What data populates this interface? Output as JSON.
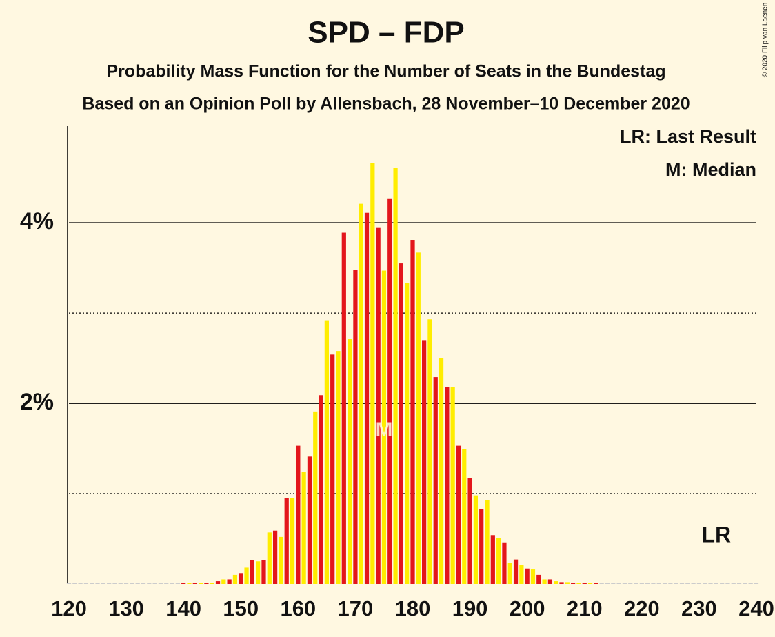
{
  "chart_data": {
    "type": "bar",
    "title": "SPD – FDP",
    "subtitle": "Probability Mass Function for the Number of Seats in the Bundestag",
    "subtitle2": "Based on an Opinion Poll by Allensbach, 28 November–10 December 2020",
    "copyright": "© 2020 Filip van Laenen",
    "legend": [
      "LR: Last Result",
      "M: Median"
    ],
    "colors": [
      "#e3161b",
      "#ffed00"
    ],
    "x": [
      120,
      121,
      122,
      123,
      124,
      125,
      126,
      127,
      128,
      129,
      130,
      131,
      132,
      133,
      134,
      135,
      136,
      137,
      138,
      139,
      140,
      141,
      142,
      143,
      144,
      145,
      146,
      147,
      148,
      149,
      150,
      151,
      152,
      153,
      154,
      155,
      156,
      157,
      158,
      159,
      160,
      161,
      162,
      163,
      164,
      165,
      166,
      167,
      168,
      169,
      170,
      171,
      172,
      173,
      174,
      175,
      176,
      177,
      178,
      179,
      180,
      181,
      182,
      183,
      184,
      185,
      186,
      187,
      188,
      189,
      190,
      191,
      192,
      193,
      194,
      195,
      196,
      197,
      198,
      199,
      200,
      201,
      202,
      203,
      204,
      205,
      206,
      207,
      208,
      209,
      210,
      211,
      212,
      213,
      214,
      215,
      216,
      217,
      218,
      219,
      220,
      221,
      222,
      223,
      224,
      225,
      226,
      227,
      228,
      229,
      230,
      231,
      232,
      233,
      234,
      235,
      236,
      237,
      238,
      239,
      240
    ],
    "values": [
      0,
      0,
      0,
      0,
      0,
      0,
      0,
      0,
      0,
      0,
      0,
      0,
      0,
      0,
      0,
      0,
      0,
      0,
      0,
      0,
      0.01,
      0.01,
      0.01,
      0.01,
      0.01,
      0.01,
      0.03,
      0.05,
      0.05,
      0.1,
      0.12,
      0.18,
      0.26,
      0.25,
      0.26,
      0.57,
      0.59,
      0.52,
      0.95,
      0.95,
      1.53,
      1.24,
      1.41,
      1.91,
      2.09,
      2.92,
      2.54,
      2.58,
      3.89,
      2.71,
      3.48,
      4.21,
      4.11,
      4.66,
      3.95,
      3.47,
      4.27,
      4.61,
      3.55,
      3.33,
      3.81,
      3.67,
      2.7,
      2.93,
      2.29,
      2.5,
      2.18,
      2.18,
      1.53,
      1.49,
      1.17,
      0.98,
      0.83,
      0.93,
      0.54,
      0.51,
      0.46,
      0.23,
      0.27,
      0.21,
      0.17,
      0.16,
      0.1,
      0.05,
      0.05,
      0.03,
      0.02,
      0.02,
      0.01,
      0.01,
      0.01,
      0.01,
      0.01,
      0,
      0,
      0,
      0,
      0,
      0,
      0,
      0,
      0,
      0,
      0,
      0,
      0,
      0,
      0,
      0,
      0,
      0,
      0,
      0,
      0,
      0,
      0,
      0,
      0,
      0,
      0,
      0
    ],
    "xlim": [
      120,
      240
    ],
    "xticks": [
      120,
      130,
      140,
      150,
      160,
      170,
      180,
      190,
      200,
      210,
      220,
      230,
      240
    ],
    "ylim": [
      0,
      5.07
    ],
    "yticks": [
      {
        "value": 2,
        "label": "2%"
      },
      {
        "value": 4,
        "label": "4%"
      }
    ],
    "minor_yticks": [
      1,
      3
    ],
    "median": {
      "label": "M",
      "x": 175
    },
    "last_result": {
      "label": "LR",
      "x": 233
    }
  }
}
